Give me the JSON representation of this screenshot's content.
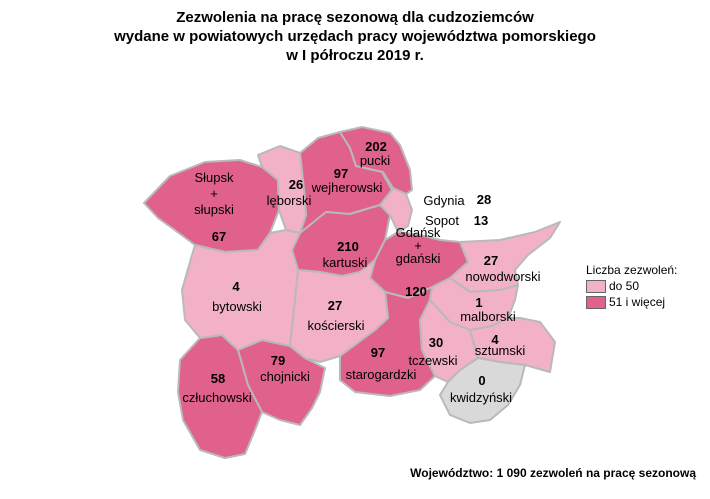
{
  "title": {
    "line1": "Zezwolenia na pracę sezonową dla cudzoziemców",
    "line2": "wydane w powiatowych urzędach pracy województwa pomorskiego",
    "line3": "w I półroczu 2019 r."
  },
  "colors": {
    "low": "#f2b1c7",
    "high": "#e0618c",
    "zero": "#d9d9d9",
    "border": "#b9b9b9"
  },
  "districts": {
    "slupsk": {
      "name": "Słupsk\n+\nsłupski",
      "value": "67"
    },
    "leborski": {
      "name": "lęborski",
      "value": "26"
    },
    "wejherowski": {
      "name": "wejherowski",
      "value": "97"
    },
    "pucki": {
      "name": "pucki",
      "value": "202"
    },
    "gdynia": {
      "name": "Gdynia",
      "value": "28"
    },
    "sopot": {
      "name": "Sopot",
      "value": "13"
    },
    "gdansk": {
      "name": "Gdańsk\n+\ngdański",
      "value": "120"
    },
    "kartuski": {
      "name": "kartuski",
      "value": "210"
    },
    "nowodworski": {
      "name": "nowodworski",
      "value": "27"
    },
    "bytowski": {
      "name": "bytowski",
      "value": "4"
    },
    "koscierski": {
      "name": "kościerski",
      "value": "27"
    },
    "malborski": {
      "name": "malborski",
      "value": "1"
    },
    "sztumski": {
      "name": "sztumski",
      "value": "4"
    },
    "tczewski": {
      "name": "tczewski",
      "value": "30"
    },
    "starogardzki": {
      "name": "starogardzki",
      "value": "97"
    },
    "chojnicki": {
      "name": "chojnicki",
      "value": "79"
    },
    "czluchowski": {
      "name": "człuchowski",
      "value": "58"
    },
    "kwidzynski": {
      "name": "kwidzyński",
      "value": "0"
    }
  },
  "legend": {
    "title": "Liczba zezwoleń:",
    "items": [
      {
        "label": "do 50"
      },
      {
        "label": "51 i więcej"
      }
    ]
  },
  "footer": "Województwo: 1 090 zezwoleń na pracę sezonową"
}
